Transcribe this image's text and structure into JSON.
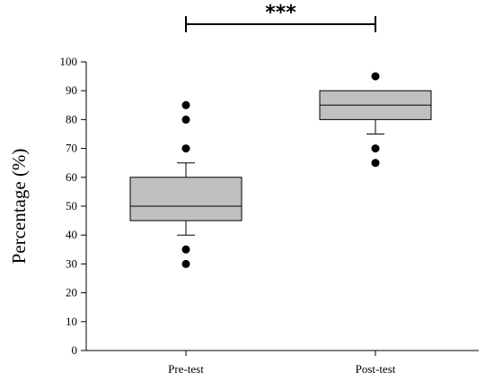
{
  "chart_data": {
    "type": "boxplot",
    "ylabel": "Percentage (%)",
    "ylim": [
      0,
      100
    ],
    "yticks": [
      0,
      10,
      20,
      30,
      40,
      50,
      60,
      70,
      80,
      90,
      100
    ],
    "categories": [
      "Pre-test",
      "Post-test"
    ],
    "box_color": "#c0c0c0",
    "boxes": [
      {
        "category": "Pre-test",
        "whisker_low": 40,
        "q1": 45,
        "median": 50,
        "q3": 60,
        "whisker_high": 65,
        "outliers": [
          30,
          35,
          70,
          80,
          85
        ]
      },
      {
        "category": "Post-test",
        "whisker_low": 75,
        "q1": 80,
        "median": 85,
        "q3": 90,
        "whisker_high": 90,
        "outliers": [
          65,
          70,
          95
        ]
      }
    ],
    "significance": {
      "label": "***",
      "between": [
        "Pre-test",
        "Post-test"
      ]
    }
  }
}
